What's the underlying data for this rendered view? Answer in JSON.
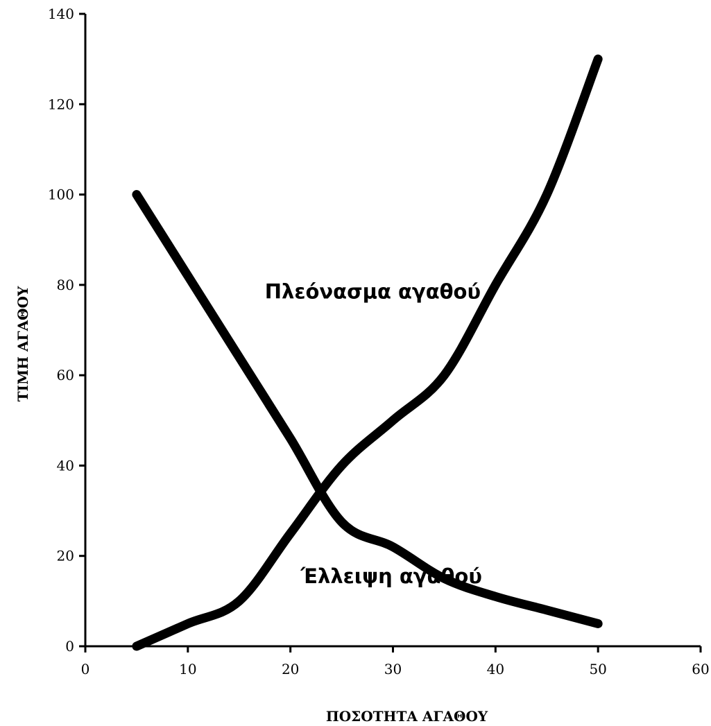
{
  "chart_data": {
    "type": "line",
    "title": "",
    "xlabel": "ΠΟΣΟΤΗΤΑ ΑΓΑΘΟΥ",
    "ylabel": "ΤΙΜΗ ΑΓΑΘΟΥ",
    "xlim": [
      0,
      60
    ],
    "ylim": [
      0,
      140
    ],
    "xticks": [
      0,
      10,
      20,
      30,
      40,
      50,
      60
    ],
    "yticks": [
      0,
      20,
      40,
      60,
      80,
      100,
      120,
      140
    ],
    "grid": false,
    "legend": "none",
    "series": [
      {
        "color": "#000000",
        "x": [
          5,
          10,
          15,
          20,
          25,
          30,
          35,
          40,
          45,
          50
        ],
        "y": [
          100,
          82,
          64,
          46,
          27.5,
          22,
          15,
          11,
          8,
          5
        ]
      },
      {
        "color": "#000000",
        "x": [
          5,
          10,
          15,
          20,
          25,
          30,
          35,
          40,
          45,
          50
        ],
        "y": [
          0,
          5,
          10,
          25,
          40,
          50,
          60,
          80,
          100,
          130
        ]
      }
    ],
    "annotations": [
      {
        "text": "Πλεόνασμα αγαθού",
        "x": 17.5,
        "y": 77
      },
      {
        "text": "Έλλειψη αγαθού",
        "x": 21,
        "y": 14
      }
    ]
  }
}
